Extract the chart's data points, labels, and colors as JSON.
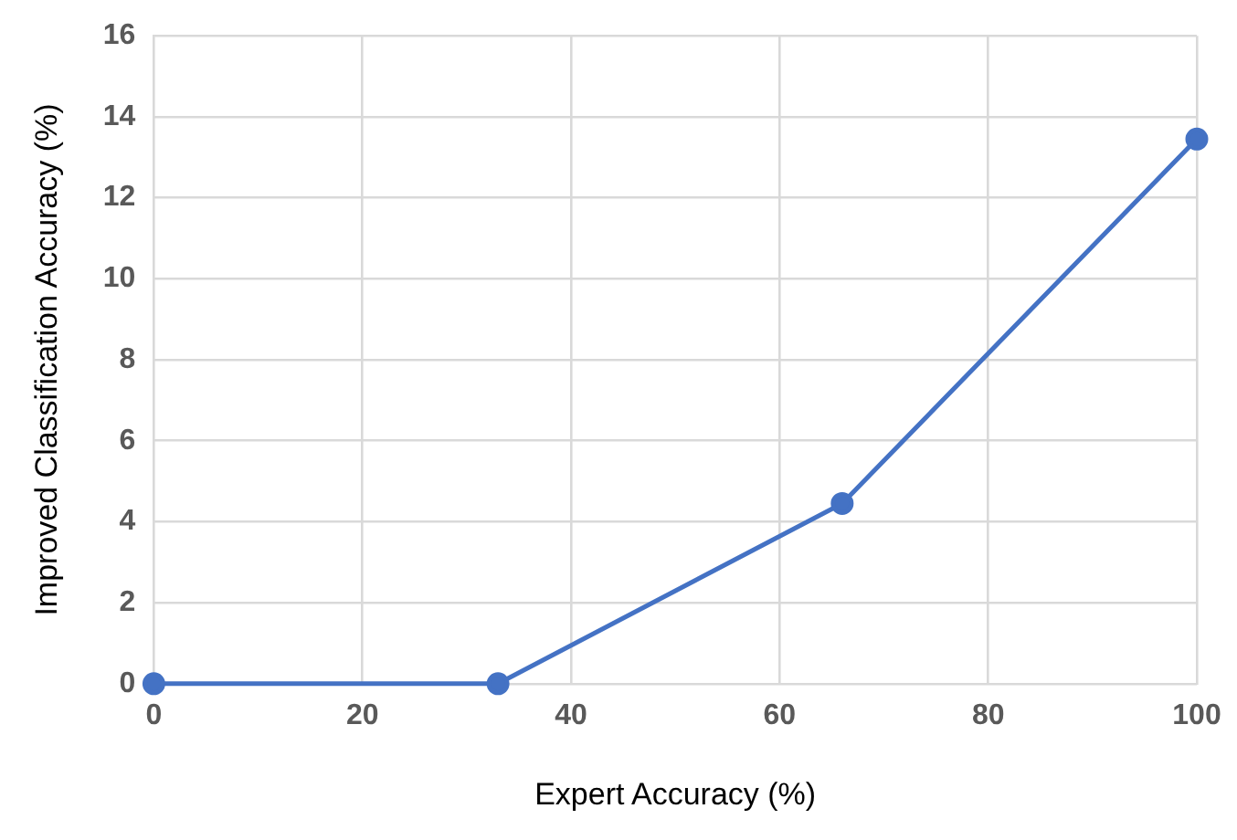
{
  "chart_data": {
    "type": "line",
    "xlabel": "Expert Accuracy (%)",
    "ylabel": "Improved Classification Accuracy (%)",
    "x": [
      0,
      33,
      66,
      100
    ],
    "series": [
      {
        "color": "#4472c4",
        "values": [
          0,
          0,
          4.45,
          13.45
        ]
      }
    ],
    "xlim": [
      0,
      100
    ],
    "xticks": [
      0,
      20,
      40,
      60,
      80,
      100
    ],
    "ylim": [
      0,
      16
    ],
    "yticks": [
      0,
      2,
      4,
      6,
      8,
      10,
      12,
      14,
      16
    ],
    "grid": true,
    "legend": false,
    "marker": "circle",
    "line_style": "solid"
  }
}
